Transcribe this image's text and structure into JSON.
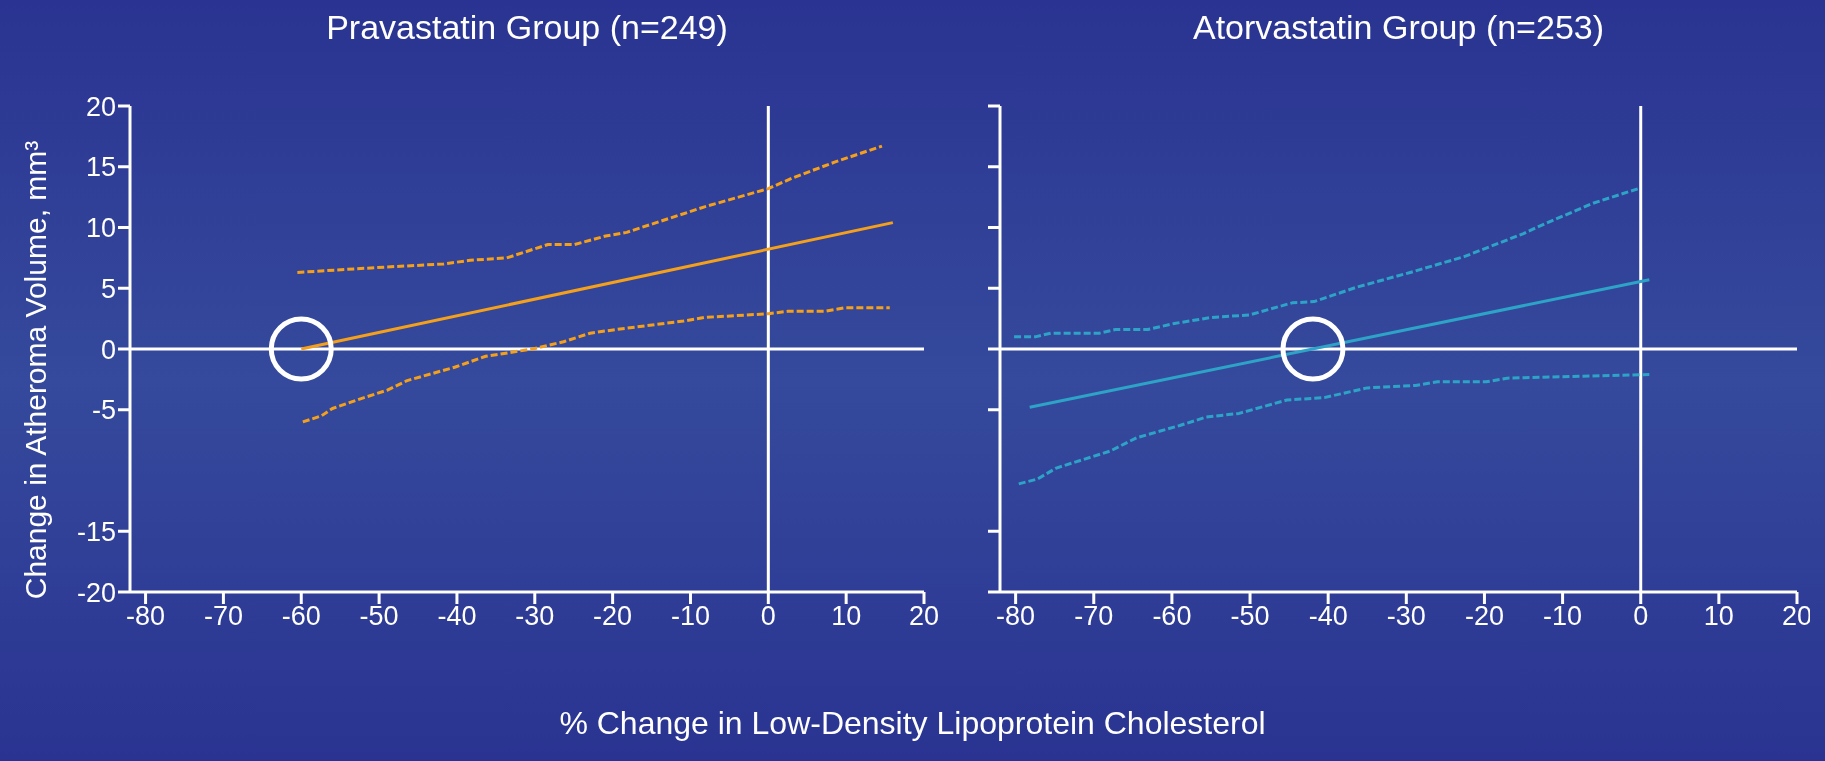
{
  "chart_data": [
    {
      "type": "line",
      "title": "Pravastatin Group (n=249)",
      "ylabel": "Change in Atheroma Volume, mm³",
      "xlabel": "% Change in Low-Density Lipoprotein Cholesterol",
      "xlim": [
        -82,
        20
      ],
      "xticks": [
        -80,
        -70,
        -60,
        -50,
        -40,
        -30,
        -20,
        -10,
        0,
        10,
        20
      ],
      "ylim": [
        -20,
        20
      ],
      "yticks": [
        -20,
        -15,
        -5,
        0,
        5,
        10,
        15,
        20
      ],
      "series": [
        {
          "color": "#f5a01a",
          "line_style": "solid",
          "x": [
            -60,
            16
          ],
          "values": [
            0,
            10.4
          ]
        },
        {
          "color": "#f5a01a",
          "line_style": "dashed",
          "x": [
            -60.5,
            -50.4,
            -41.7,
            -38.3,
            -33.6,
            -28.3,
            -24.9,
            -20.9,
            -18.2,
            -8.2,
            0,
            3.2,
            8.6,
            14.6
          ],
          "values": [
            6.3,
            6.7,
            7.0,
            7.3,
            7.5,
            8.6,
            8.6,
            9.3,
            9.6,
            11.7,
            13.2,
            14.1,
            15.4,
            16.7
          ]
        },
        {
          "color": "#f5a01a",
          "line_style": "dashed",
          "x": [
            -59.8,
            -57.4,
            -56,
            -52.4,
            -49,
            -46.4,
            -40.3,
            -36.3,
            -30.3,
            -26.3,
            -22.9,
            -19.6,
            -10.9,
            -8.2,
            0,
            2.5,
            7.2,
            9.9,
            15.6
          ],
          "values": [
            -6.0,
            -5.5,
            -4.9,
            -4.1,
            -3.4,
            -2.6,
            -1.5,
            -0.6,
            0,
            0.6,
            1.3,
            1.6,
            2.3,
            2.6,
            2.9,
            3.1,
            3.1,
            3.4,
            3.4
          ]
        }
      ]
    },
    {
      "type": "line",
      "title": "Atorvastatin Group (n=253)",
      "xlim": [
        -82,
        20
      ],
      "xticks": [
        -80,
        -70,
        -60,
        -50,
        -40,
        -30,
        -20,
        -10,
        0,
        10,
        20
      ],
      "ylim": [
        -20,
        20
      ],
      "yticks": [
        -20,
        -15,
        -5,
        0,
        5,
        10,
        15,
        20
      ],
      "tick_labels": "x",
      "series": [
        {
          "color": "#2ea3c8",
          "line_style": "solid",
          "x": [
            -78.2,
            1.1
          ],
          "values": [
            -4.8,
            5.7
          ]
        },
        {
          "color": "#2ea3c8",
          "line_style": "dashed",
          "x": [
            -80.2,
            -77.5,
            -75.5,
            -69.3,
            -67.2,
            -63.1,
            -59.7,
            -54.9,
            -50.1,
            -44.6,
            -41.8,
            -36.3,
            -29.5,
            -22.6,
            -15,
            -12.3,
            -6.1,
            -0.3
          ],
          "values": [
            1.0,
            1.0,
            1.3,
            1.3,
            1.6,
            1.6,
            2.1,
            2.6,
            2.8,
            3.8,
            3.9,
            5.1,
            6.3,
            7.6,
            9.5,
            10.3,
            12.0,
            13.2
          ]
        },
        {
          "color": "#2ea3c8",
          "line_style": "dashed",
          "x": [
            -79.6,
            -77.2,
            -74.8,
            -67.9,
            -64.5,
            -59,
            -55.6,
            -51.4,
            -45.3,
            -40.5,
            -35,
            -28.8,
            -26,
            -19.8,
            -17.1,
            1.1
          ],
          "values": [
            -11.1,
            -10.7,
            -9.8,
            -8.4,
            -7.3,
            -6.3,
            -5.6,
            -5.3,
            -4.2,
            -4.0,
            -3.2,
            -3.0,
            -2.7,
            -2.7,
            -2.4,
            -2.1
          ]
        }
      ]
    }
  ]
}
